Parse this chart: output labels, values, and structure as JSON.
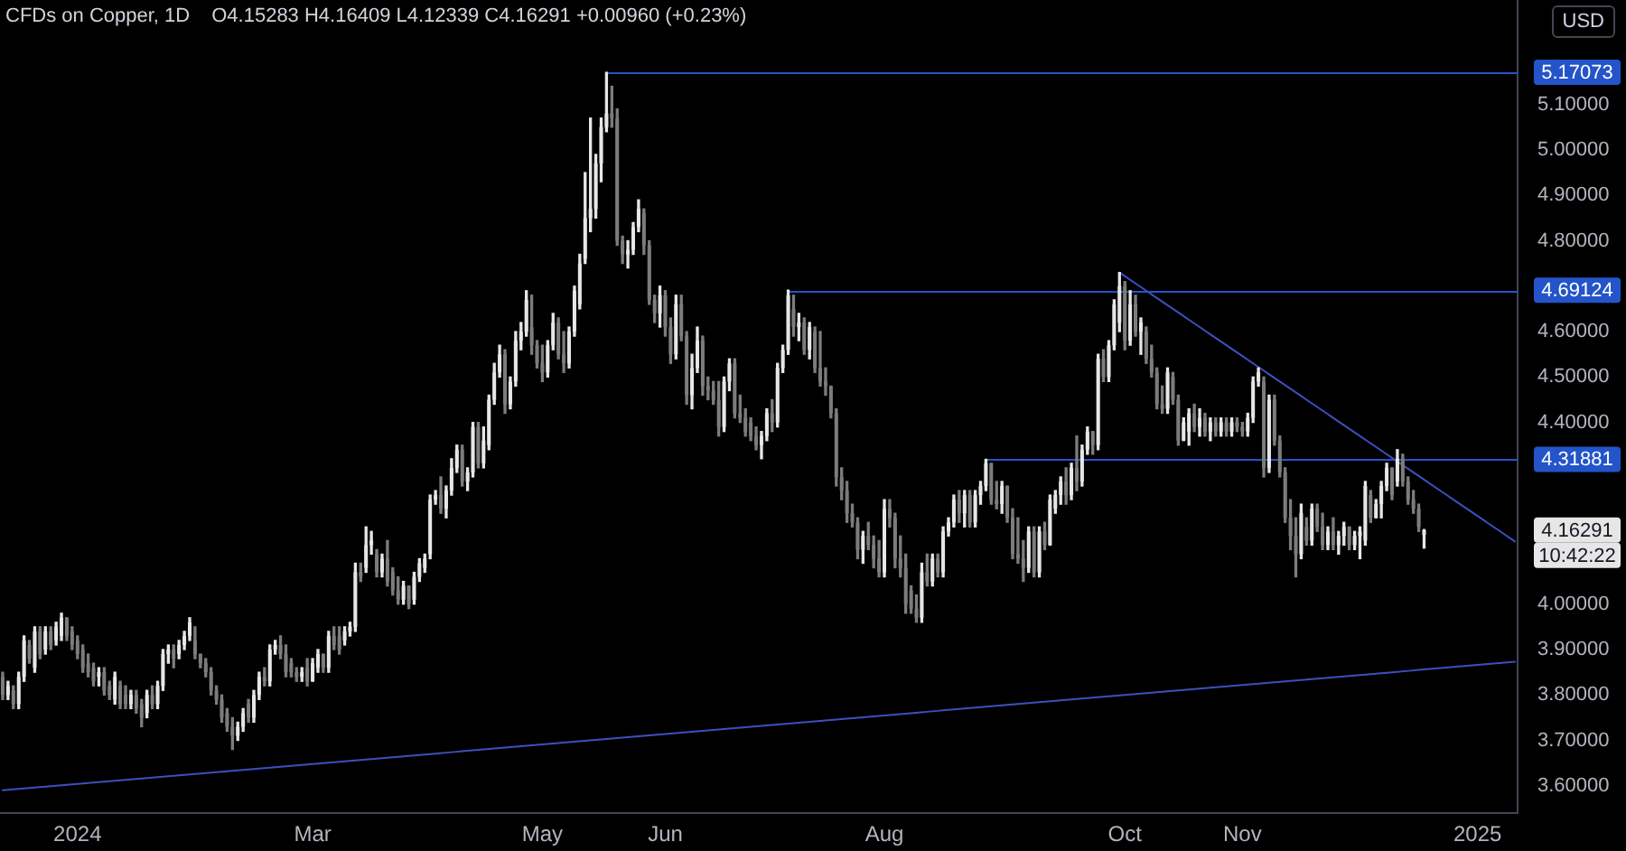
{
  "chart_data": {
    "type": "candlestick",
    "title": "CFDs on Copper, 1D",
    "subtitle": "O4.15283 H4.16409 L4.12339 C4.16291 +0.00960 (+0.23%)",
    "ylabel": "USD",
    "categories": [
      null,
      null,
      null,
      null,
      null,
      null,
      null,
      null,
      null,
      null,
      null,
      null,
      null,
      null,
      "2024",
      null,
      null,
      null,
      null,
      null,
      null,
      null,
      null,
      null,
      null,
      null,
      null,
      null,
      null,
      null,
      null,
      null,
      null,
      null,
      null,
      null,
      null,
      null,
      null,
      null,
      null,
      null,
      null,
      null,
      null,
      null,
      null,
      null,
      null,
      null,
      null,
      null,
      null,
      null,
      null,
      null,
      null,
      null,
      "Mar",
      null,
      null,
      null,
      null,
      null,
      null,
      null,
      null,
      null,
      null,
      null,
      null,
      null,
      null,
      null,
      null,
      null,
      null,
      null,
      null,
      null,
      null,
      null,
      null,
      null,
      null,
      null,
      null,
      null,
      null,
      null,
      null,
      null,
      null,
      null,
      null,
      null,
      null,
      null,
      null,
      null,
      null,
      "May",
      null,
      null,
      null,
      null,
      null,
      null,
      null,
      null,
      null,
      null,
      null,
      null,
      null,
      null,
      null,
      null,
      null,
      null,
      null,
      null,
      null,
      null,
      "Jun",
      null,
      null,
      null,
      null,
      null,
      null,
      null,
      null,
      null,
      null,
      null,
      null,
      null,
      null,
      null,
      null,
      null,
      null,
      null,
      null,
      null,
      null,
      null,
      null,
      null,
      null,
      null,
      null,
      null,
      null,
      null,
      null,
      null,
      null,
      null,
      null,
      null,
      null,
      null,
      null,
      "Aug",
      null,
      null,
      null,
      null,
      null,
      null,
      null,
      null,
      null,
      null,
      null,
      null,
      null,
      null,
      null,
      null,
      null,
      null,
      null,
      null,
      null,
      null,
      null,
      null,
      null,
      null,
      null,
      null,
      null,
      null,
      null,
      null,
      null,
      null,
      null,
      null,
      null,
      null,
      null,
      null,
      null,
      null,
      null,
      null,
      "Oct",
      null,
      null,
      null,
      null,
      null,
      null,
      null,
      null,
      null,
      null,
      null,
      null,
      null,
      null,
      null,
      null,
      null,
      null,
      null,
      null,
      null,
      "Nov",
      null,
      null,
      null,
      null,
      null,
      null,
      null,
      null,
      null,
      null,
      null,
      null,
      null,
      null,
      null,
      null,
      null,
      null,
      null,
      null,
      null,
      null,
      null,
      null,
      null,
      null,
      null,
      null,
      null,
      null,
      null,
      null,
      null,
      null,
      null,
      null,
      null,
      null,
      null,
      null,
      null,
      null,
      null,
      "2025",
      null,
      null,
      null,
      null,
      null,
      null,
      null
    ],
    "ohlc": [
      [
        3.84,
        3.85,
        3.79,
        3.8
      ],
      [
        3.8,
        3.83,
        3.79,
        3.82
      ],
      [
        3.81,
        3.82,
        3.77,
        3.78
      ],
      [
        3.78,
        3.85,
        3.77,
        3.84
      ],
      [
        3.84,
        3.93,
        3.83,
        3.92
      ],
      [
        3.91,
        3.92,
        3.87,
        3.88
      ],
      [
        3.86,
        3.95,
        3.85,
        3.94
      ],
      [
        3.94,
        3.95,
        3.88,
        3.89
      ],
      [
        3.9,
        3.95,
        3.89,
        3.94
      ],
      [
        3.94,
        3.95,
        3.9,
        3.91
      ],
      [
        3.92,
        3.96,
        3.91,
        3.95
      ],
      [
        3.93,
        3.98,
        3.92,
        3.97
      ],
      [
        3.97,
        3.97,
        3.92,
        3.93
      ],
      [
        3.94,
        3.95,
        3.9,
        3.91
      ],
      [
        3.92,
        3.93,
        3.88,
        3.89
      ],
      [
        3.9,
        3.91,
        3.85,
        3.86
      ],
      [
        3.87,
        3.89,
        3.84,
        3.85
      ],
      [
        3.86,
        3.87,
        3.82,
        3.83
      ],
      [
        3.84,
        3.86,
        3.82,
        3.85
      ],
      [
        3.85,
        3.86,
        3.8,
        3.81
      ],
      [
        3.82,
        3.83,
        3.79,
        3.8
      ],
      [
        3.79,
        3.85,
        3.78,
        3.84
      ],
      [
        3.82,
        3.83,
        3.77,
        3.78
      ],
      [
        3.8,
        3.82,
        3.77,
        3.78
      ],
      [
        3.78,
        3.81,
        3.77,
        3.8
      ],
      [
        3.8,
        3.81,
        3.76,
        3.77
      ],
      [
        3.78,
        3.79,
        3.73,
        3.75
      ],
      [
        3.76,
        3.81,
        3.75,
        3.8
      ],
      [
        3.8,
        3.82,
        3.77,
        3.78
      ],
      [
        3.78,
        3.83,
        3.77,
        3.82
      ],
      [
        3.82,
        3.9,
        3.81,
        3.89
      ],
      [
        3.89,
        3.91,
        3.87,
        3.9
      ],
      [
        3.9,
        3.91,
        3.86,
        3.88
      ],
      [
        3.89,
        3.92,
        3.88,
        3.91
      ],
      [
        3.91,
        3.94,
        3.9,
        3.93
      ],
      [
        3.93,
        3.97,
        3.92,
        3.96
      ],
      [
        3.92,
        3.95,
        3.88,
        3.89
      ],
      [
        3.89,
        3.89,
        3.86,
        3.87
      ],
      [
        3.87,
        3.88,
        3.84,
        3.85
      ],
      [
        3.85,
        3.86,
        3.8,
        3.81
      ],
      [
        3.81,
        3.82,
        3.78,
        3.79
      ],
      [
        3.79,
        3.8,
        3.74,
        3.75
      ],
      [
        3.76,
        3.77,
        3.72,
        3.73
      ],
      [
        3.73,
        3.75,
        3.68,
        3.71
      ],
      [
        3.71,
        3.74,
        3.7,
        3.73
      ],
      [
        3.73,
        3.77,
        3.72,
        3.76
      ],
      [
        3.78,
        3.79,
        3.74,
        3.75
      ],
      [
        3.75,
        3.81,
        3.74,
        3.8
      ],
      [
        3.8,
        3.85,
        3.79,
        3.84
      ],
      [
        3.84,
        3.86,
        3.82,
        3.83
      ],
      [
        3.83,
        3.91,
        3.82,
        3.9
      ],
      [
        3.9,
        3.92,
        3.89,
        3.91
      ],
      [
        3.91,
        3.93,
        3.88,
        3.89
      ],
      [
        3.89,
        3.91,
        3.84,
        3.85
      ],
      [
        3.87,
        3.88,
        3.84,
        3.85
      ],
      [
        3.85,
        3.86,
        3.83,
        3.84
      ],
      [
        3.84,
        3.86,
        3.83,
        3.85
      ],
      [
        3.86,
        3.88,
        3.82,
        3.83
      ],
      [
        3.83,
        3.88,
        3.83,
        3.87
      ],
      [
        3.86,
        3.9,
        3.85,
        3.89
      ],
      [
        3.89,
        3.89,
        3.85,
        3.86
      ],
      [
        3.86,
        3.94,
        3.85,
        3.93
      ],
      [
        3.93,
        3.95,
        3.9,
        3.91
      ],
      [
        3.93,
        3.95,
        3.89,
        3.9
      ],
      [
        3.92,
        3.95,
        3.91,
        3.94
      ],
      [
        3.94,
        3.96,
        3.93,
        3.95
      ],
      [
        3.95,
        4.09,
        3.94,
        4.07
      ],
      [
        4.07,
        4.09,
        4.05,
        4.06
      ],
      [
        4.08,
        4.17,
        4.07,
        4.13
      ],
      [
        4.13,
        4.16,
        4.11,
        4.14
      ],
      [
        4.11,
        4.12,
        4.06,
        4.07
      ],
      [
        4.07,
        4.11,
        4.06,
        4.1
      ],
      [
        4.1,
        4.14,
        4.04,
        4.05
      ],
      [
        4.07,
        4.08,
        4.02,
        4.03
      ],
      [
        4.03,
        4.06,
        4.0,
        4.01
      ],
      [
        4.01,
        4.05,
        4.0,
        4.04
      ],
      [
        4.04,
        4.04,
        3.99,
        4.0
      ],
      [
        4.01,
        4.07,
        4.0,
        4.06
      ],
      [
        4.06,
        4.1,
        4.05,
        4.09
      ],
      [
        4.08,
        4.11,
        4.07,
        4.1
      ],
      [
        4.11,
        4.24,
        4.1,
        4.23
      ],
      [
        4.23,
        4.25,
        4.22,
        4.24
      ],
      [
        4.24,
        4.28,
        4.2,
        4.21
      ],
      [
        4.21,
        4.26,
        4.19,
        4.25
      ],
      [
        4.25,
        4.32,
        4.24,
        4.3
      ],
      [
        4.3,
        4.35,
        4.29,
        4.34
      ],
      [
        4.34,
        4.35,
        4.26,
        4.27
      ],
      [
        4.27,
        4.3,
        4.25,
        4.29
      ],
      [
        4.29,
        4.4,
        4.28,
        4.39
      ],
      [
        4.39,
        4.4,
        4.3,
        4.31
      ],
      [
        4.31,
        4.39,
        4.3,
        4.36
      ],
      [
        4.35,
        4.46,
        4.34,
        4.45
      ],
      [
        4.45,
        4.53,
        4.44,
        4.51
      ],
      [
        4.51,
        4.57,
        4.5,
        4.55
      ],
      [
        4.55,
        4.56,
        4.42,
        4.44
      ],
      [
        4.44,
        4.5,
        4.43,
        4.49
      ],
      [
        4.49,
        4.6,
        4.48,
        4.58
      ],
      [
        4.58,
        4.62,
        4.56,
        4.6
      ],
      [
        4.6,
        4.69,
        4.59,
        4.67
      ],
      [
        4.61,
        4.68,
        4.55,
        4.57
      ],
      [
        4.57,
        4.58,
        4.52,
        4.53
      ],
      [
        4.53,
        4.57,
        4.49,
        4.51
      ],
      [
        4.51,
        4.58,
        4.5,
        4.57
      ],
      [
        4.57,
        4.64,
        4.56,
        4.62
      ],
      [
        4.62,
        4.63,
        4.54,
        4.55
      ],
      [
        4.55,
        4.6,
        4.51,
        4.53
      ],
      [
        4.53,
        4.61,
        4.52,
        4.6
      ],
      [
        4.6,
        4.7,
        4.59,
        4.69
      ],
      [
        4.66,
        4.77,
        4.65,
        4.75
      ],
      [
        4.76,
        4.95,
        4.75,
        4.85
      ],
      [
        4.85,
        5.07,
        4.82,
        4.87
      ],
      [
        4.87,
        4.99,
        4.85,
        4.97
      ],
      [
        4.97,
        5.07,
        4.93,
        5.05
      ],
      [
        5.05,
        5.17073,
        5.04,
        5.08
      ],
      [
        5.08,
        5.14,
        5.05,
        5.07
      ],
      [
        5.07,
        5.09,
        4.79,
        4.8
      ],
      [
        4.8,
        4.81,
        4.75,
        4.77
      ],
      [
        4.77,
        4.8,
        4.74,
        4.78
      ],
      [
        4.78,
        4.84,
        4.77,
        4.83
      ],
      [
        4.83,
        4.89,
        4.82,
        4.87
      ],
      [
        4.86,
        4.87,
        4.77,
        4.79
      ],
      [
        4.79,
        4.8,
        4.66,
        4.67
      ],
      [
        4.67,
        4.68,
        4.62,
        4.64
      ],
      [
        4.64,
        4.7,
        4.61,
        4.68
      ],
      [
        4.68,
        4.69,
        4.59,
        4.61
      ],
      [
        4.61,
        4.63,
        4.53,
        4.55
      ],
      [
        4.55,
        4.68,
        4.54,
        4.66
      ],
      [
        4.66,
        4.68,
        4.58,
        4.59
      ],
      [
        4.59,
        4.6,
        4.44,
        4.46
      ],
      [
        4.46,
        4.55,
        4.43,
        4.52
      ],
      [
        4.52,
        4.61,
        4.51,
        4.58
      ],
      [
        4.58,
        4.59,
        4.46,
        4.48
      ],
      [
        4.48,
        4.5,
        4.45,
        4.47
      ],
      [
        4.47,
        4.49,
        4.44,
        4.45
      ],
      [
        4.45,
        4.49,
        4.37,
        4.39
      ],
      [
        4.39,
        4.5,
        4.38,
        4.49
      ],
      [
        4.49,
        4.54,
        4.47,
        4.53
      ],
      [
        4.53,
        4.54,
        4.41,
        4.42
      ],
      [
        4.42,
        4.46,
        4.4,
        4.41
      ],
      [
        4.41,
        4.43,
        4.37,
        4.38
      ],
      [
        4.4,
        4.41,
        4.36,
        4.37
      ],
      [
        4.37,
        4.39,
        4.34,
        4.35
      ],
      [
        4.35,
        4.38,
        4.32,
        4.37
      ],
      [
        4.37,
        4.43,
        4.36,
        4.42
      ],
      [
        4.42,
        4.45,
        4.38,
        4.4
      ],
      [
        4.4,
        4.53,
        4.39,
        4.52
      ],
      [
        4.52,
        4.57,
        4.51,
        4.56
      ],
      [
        4.56,
        4.69124,
        4.55,
        4.68
      ],
      [
        4.65,
        4.68,
        4.59,
        4.61
      ],
      [
        4.61,
        4.64,
        4.58,
        4.62
      ],
      [
        4.62,
        4.63,
        4.55,
        4.56
      ],
      [
        4.56,
        4.62,
        4.54,
        4.61
      ],
      [
        4.6,
        4.61,
        4.51,
        4.52
      ],
      [
        4.52,
        4.6,
        4.48,
        4.49
      ],
      [
        4.49,
        4.52,
        4.46,
        4.48
      ],
      [
        4.48,
        4.48,
        4.41,
        4.42
      ],
      [
        4.42,
        4.43,
        4.26,
        4.28
      ],
      [
        4.28,
        4.3,
        4.23,
        4.25
      ],
      [
        4.25,
        4.27,
        4.18,
        4.2
      ],
      [
        4.2,
        4.22,
        4.17,
        4.18
      ],
      [
        4.18,
        4.19,
        4.1,
        4.12
      ],
      [
        4.12,
        4.16,
        4.09,
        4.15
      ],
      [
        4.15,
        4.18,
        4.12,
        4.13
      ],
      [
        4.13,
        4.15,
        4.08,
        4.1
      ],
      [
        4.1,
        4.14,
        4.06,
        4.07
      ],
      [
        4.07,
        4.23,
        4.06,
        4.21
      ],
      [
        4.21,
        4.23,
        4.17,
        4.19
      ],
      [
        4.19,
        4.2,
        4.08,
        4.1
      ],
      [
        4.1,
        4.15,
        4.06,
        4.08
      ],
      [
        4.08,
        4.11,
        3.98,
        4.0
      ],
      [
        4.03,
        4.04,
        3.98,
        3.99
      ],
      [
        3.99,
        4.02,
        3.96,
        3.97
      ],
      [
        3.97,
        4.09,
        3.96,
        4.07
      ],
      [
        4.07,
        4.11,
        4.04,
        4.05
      ],
      [
        4.05,
        4.11,
        4.04,
        4.1
      ],
      [
        4.1,
        4.11,
        4.06,
        4.07
      ],
      [
        4.07,
        4.17,
        4.06,
        4.16
      ],
      [
        4.16,
        4.19,
        4.15,
        4.18
      ],
      [
        4.18,
        4.24,
        4.17,
        4.23
      ],
      [
        4.23,
        4.25,
        4.18,
        4.2
      ],
      [
        4.2,
        4.25,
        4.17,
        4.24
      ],
      [
        4.24,
        4.25,
        4.17,
        4.18
      ],
      [
        4.18,
        4.25,
        4.17,
        4.24
      ],
      [
        4.24,
        4.27,
        4.22,
        4.26
      ],
      [
        4.26,
        4.31881,
        4.25,
        4.31
      ],
      [
        4.31,
        4.31,
        4.22,
        4.23
      ],
      [
        4.23,
        4.27,
        4.21,
        4.22
      ],
      [
        4.22,
        4.27,
        4.2,
        4.26
      ],
      [
        4.26,
        4.26,
        4.18,
        4.19
      ],
      [
        4.19,
        4.21,
        4.1,
        4.11
      ],
      [
        4.11,
        4.19,
        4.09,
        4.1
      ],
      [
        4.1,
        4.14,
        4.05,
        4.08
      ],
      [
        4.08,
        4.17,
        4.07,
        4.16
      ],
      [
        4.16,
        4.17,
        4.06,
        4.07
      ],
      [
        4.07,
        4.17,
        4.06,
        4.16
      ],
      [
        4.16,
        4.18,
        4.12,
        4.13
      ],
      [
        4.13,
        4.24,
        4.13,
        4.23
      ],
      [
        4.21,
        4.25,
        4.2,
        4.24
      ],
      [
        4.24,
        4.28,
        4.22,
        4.27
      ],
      [
        4.27,
        4.3,
        4.22,
        4.24
      ],
      [
        4.24,
        4.31,
        4.23,
        4.3
      ],
      [
        4.3,
        4.37,
        4.25,
        4.27
      ],
      [
        4.27,
        4.35,
        4.26,
        4.34
      ],
      [
        4.34,
        4.39,
        4.33,
        4.38
      ],
      [
        4.38,
        4.38,
        4.33,
        4.35
      ],
      [
        4.35,
        4.55,
        4.34,
        4.54
      ],
      [
        4.54,
        4.56,
        4.49,
        4.5
      ],
      [
        4.5,
        4.58,
        4.49,
        4.57
      ],
      [
        4.57,
        4.67,
        4.56,
        4.66
      ],
      [
        4.62,
        4.73,
        4.6,
        4.7
      ],
      [
        4.7,
        4.71,
        4.56,
        4.58
      ],
      [
        4.58,
        4.69,
        4.57,
        4.66
      ],
      [
        4.66,
        4.68,
        4.59,
        4.6
      ],
      [
        4.6,
        4.63,
        4.55,
        4.62
      ],
      [
        4.6,
        4.61,
        4.53,
        4.54
      ],
      [
        4.54,
        4.57,
        4.5,
        4.51
      ],
      [
        4.51,
        4.52,
        4.43,
        4.44
      ],
      [
        4.44,
        4.48,
        4.42,
        4.43
      ],
      [
        4.43,
        4.52,
        4.42,
        4.51
      ],
      [
        4.5,
        4.51,
        4.44,
        4.45
      ],
      [
        4.45,
        4.46,
        4.35,
        4.36
      ],
      [
        4.36,
        4.41,
        4.36,
        4.4
      ],
      [
        4.38,
        4.43,
        4.35,
        4.42
      ],
      [
        4.42,
        4.44,
        4.38,
        4.39
      ],
      [
        4.39,
        4.43,
        4.37,
        4.41
      ],
      [
        4.41,
        4.42,
        4.37,
        4.38
      ],
      [
        4.38,
        4.41,
        4.36,
        4.4
      ],
      [
        4.4,
        4.41,
        4.37,
        4.38
      ],
      [
        4.38,
        4.41,
        4.37,
        4.4
      ],
      [
        4.4,
        4.41,
        4.37,
        4.38
      ],
      [
        4.38,
        4.41,
        4.37,
        4.4
      ],
      [
        4.4,
        4.41,
        4.38,
        4.39
      ],
      [
        4.39,
        4.4,
        4.37,
        4.38
      ],
      [
        4.38,
        4.42,
        4.37,
        4.41
      ],
      [
        4.41,
        4.5,
        4.4,
        4.49
      ],
      [
        4.49,
        4.52,
        4.48,
        4.51
      ],
      [
        4.49,
        4.5,
        4.28,
        4.3
      ],
      [
        4.3,
        4.46,
        4.29,
        4.45
      ],
      [
        4.45,
        4.46,
        4.35,
        4.36
      ],
      [
        4.36,
        4.37,
        4.28,
        4.29
      ],
      [
        4.29,
        4.3,
        4.18,
        4.19
      ],
      [
        4.19,
        4.23,
        4.12,
        4.15
      ],
      [
        4.15,
        4.19,
        4.06,
        4.11
      ],
      [
        4.11,
        4.22,
        4.1,
        4.2
      ],
      [
        4.17,
        4.19,
        4.13,
        4.14
      ],
      [
        4.14,
        4.22,
        4.13,
        4.21
      ],
      [
        4.21,
        4.22,
        4.16,
        4.17
      ],
      [
        4.17,
        4.2,
        4.12,
        4.13
      ],
      [
        4.13,
        4.17,
        4.12,
        4.16
      ],
      [
        4.16,
        4.19,
        4.12,
        4.13
      ],
      [
        4.13,
        4.16,
        4.11,
        4.15
      ],
      [
        4.15,
        4.18,
        4.13,
        4.17
      ],
      [
        4.17,
        4.17,
        4.12,
        4.13
      ],
      [
        4.13,
        4.16,
        4.12,
        4.15
      ],
      [
        4.15,
        4.17,
        4.1,
        4.16
      ],
      [
        4.14,
        4.27,
        4.13,
        4.26
      ],
      [
        4.24,
        4.25,
        4.18,
        4.19
      ],
      [
        4.19,
        4.23,
        4.19,
        4.22
      ],
      [
        4.22,
        4.27,
        4.19,
        4.26
      ],
      [
        4.26,
        4.31,
        4.25,
        4.3
      ],
      [
        4.3,
        4.3,
        4.23,
        4.24
      ],
      [
        4.27,
        4.34,
        4.26,
        4.32
      ],
      [
        4.32,
        4.33,
        4.26,
        4.27
      ],
      [
        4.27,
        4.28,
        4.22,
        4.23
      ],
      [
        4.23,
        4.25,
        4.2,
        4.21
      ],
      [
        4.21,
        4.22,
        4.16,
        4.17
      ],
      [
        4.15283,
        4.16409,
        4.12339,
        4.16291
      ],
      null,
      null,
      null,
      null,
      null,
      null,
      null,
      null,
      null,
      null,
      null,
      null,
      null,
      null,
      null,
      null,
      null
    ],
    "colors": [
      "#7c7c7c",
      "#e6e6e6",
      "#7c7c7c",
      "#e6e6e6",
      "#e6e6e6",
      "#7c7c7c",
      "#e6e6e6",
      "#7c7c7c",
      "#e6e6e6",
      "#7c7c7c",
      "#e6e6e6",
      "#e6e6e6",
      "#7c7c7c",
      "#7c7c7c",
      "#7c7c7c",
      "#7c7c7c",
      "#7c7c7c",
      "#7c7c7c",
      "#e6e6e6",
      "#7c7c7c",
      "#7c7c7c",
      "#e6e6e6",
      "#7c7c7c",
      "#7c7c7c",
      "#e6e6e6",
      "#7c7c7c",
      "#7c7c7c",
      "#e6e6e6",
      "#7c7c7c",
      "#e6e6e6",
      "#e6e6e6",
      "#e6e6e6",
      "#7c7c7c",
      "#e6e6e6",
      "#e6e6e6",
      "#e6e6e6",
      "#7c7c7c",
      "#7c7c7c",
      "#7c7c7c",
      "#7c7c7c",
      "#7c7c7c",
      "#7c7c7c",
      "#7c7c7c",
      "#7c7c7c",
      "#e6e6e6",
      "#e6e6e6",
      "#7c7c7c",
      "#e6e6e6",
      "#e6e6e6",
      "#7c7c7c",
      "#e6e6e6",
      "#e6e6e6",
      "#7c7c7c",
      "#7c7c7c",
      "#7c7c7c",
      "#7c7c7c",
      "#e6e6e6",
      "#7c7c7c",
      "#e6e6e6",
      "#e6e6e6",
      "#7c7c7c",
      "#e6e6e6",
      "#7c7c7c",
      "#7c7c7c",
      "#e6e6e6",
      "#e6e6e6",
      "#e6e6e6",
      "#7c7c7c",
      "#e6e6e6",
      "#e6e6e6",
      "#7c7c7c",
      "#e6e6e6",
      "#7c7c7c",
      "#7c7c7c",
      "#7c7c7c",
      "#e6e6e6",
      "#7c7c7c",
      "#e6e6e6",
      "#e6e6e6",
      "#e6e6e6",
      "#e6e6e6",
      "#e6e6e6",
      "#7c7c7c",
      "#e6e6e6",
      "#e6e6e6",
      "#e6e6e6",
      "#7c7c7c",
      "#e6e6e6",
      "#e6e6e6",
      "#7c7c7c",
      "#e6e6e6",
      "#e6e6e6",
      "#e6e6e6",
      "#e6e6e6",
      "#7c7c7c",
      "#e6e6e6",
      "#e6e6e6",
      "#e6e6e6",
      "#e6e6e6",
      "#7c7c7c",
      "#7c7c7c",
      "#7c7c7c",
      "#e6e6e6",
      "#e6e6e6",
      "#7c7c7c",
      "#7c7c7c",
      "#e6e6e6",
      "#e6e6e6",
      "#e6e6e6",
      "#e6e6e6",
      "#e6e6e6",
      "#e6e6e6",
      "#e6e6e6",
      "#e6e6e6",
      "#7c7c7c",
      "#7c7c7c",
      "#7c7c7c",
      "#e6e6e6",
      "#e6e6e6",
      "#e6e6e6",
      "#7c7c7c",
      "#7c7c7c",
      "#7c7c7c",
      "#e6e6e6",
      "#7c7c7c",
      "#7c7c7c",
      "#e6e6e6",
      "#7c7c7c",
      "#7c7c7c",
      "#e6e6e6",
      "#e6e6e6",
      "#7c7c7c",
      "#7c7c7c",
      "#7c7c7c",
      "#7c7c7c",
      "#e6e6e6",
      "#e6e6e6",
      "#7c7c7c",
      "#7c7c7c",
      "#7c7c7c",
      "#7c7c7c",
      "#7c7c7c",
      "#e6e6e6",
      "#e6e6e6",
      "#7c7c7c",
      "#e6e6e6",
      "#e6e6e6",
      "#e6e6e6",
      "#7c7c7c",
      "#e6e6e6",
      "#7c7c7c",
      "#e6e6e6",
      "#7c7c7c",
      "#7c7c7c",
      "#7c7c7c",
      "#7c7c7c",
      "#7c7c7c",
      "#7c7c7c",
      "#7c7c7c",
      "#7c7c7c",
      "#7c7c7c",
      "#e6e6e6",
      "#7c7c7c",
      "#7c7c7c",
      "#7c7c7c",
      "#e6e6e6",
      "#7c7c7c",
      "#7c7c7c",
      "#7c7c7c",
      "#7c7c7c",
      "#7c7c7c",
      "#7c7c7c",
      "#e6e6e6",
      "#7c7c7c",
      "#e6e6e6",
      "#7c7c7c",
      "#e6e6e6",
      "#e6e6e6",
      "#e6e6e6",
      "#7c7c7c",
      "#e6e6e6",
      "#7c7c7c",
      "#e6e6e6",
      "#e6e6e6",
      "#e6e6e6",
      "#7c7c7c",
      "#7c7c7c",
      "#e6e6e6",
      "#7c7c7c",
      "#7c7c7c",
      "#7c7c7c",
      "#7c7c7c",
      "#e6e6e6",
      "#7c7c7c",
      "#e6e6e6",
      "#7c7c7c",
      "#e6e6e6",
      "#e6e6e6",
      "#e6e6e6",
      "#7c7c7c",
      "#e6e6e6",
      "#7c7c7c",
      "#e6e6e6",
      "#e6e6e6",
      "#7c7c7c",
      "#e6e6e6",
      "#7c7c7c",
      "#e6e6e6",
      "#e6e6e6",
      "#e6e6e6",
      "#7c7c7c",
      "#e6e6e6",
      "#7c7c7c",
      "#e6e6e6",
      "#7c7c7c",
      "#7c7c7c",
      "#7c7c7c",
      "#7c7c7c",
      "#e6e6e6",
      "#7c7c7c",
      "#7c7c7c",
      "#e6e6e6",
      "#e6e6e6",
      "#7c7c7c",
      "#e6e6e6",
      "#7c7c7c",
      "#e6e6e6",
      "#7c7c7c",
      "#e6e6e6",
      "#7c7c7c",
      "#e6e6e6",
      "#7c7c7c",
      "#7c7c7c",
      "#e6e6e6",
      "#e6e6e6",
      "#e6e6e6",
      "#7c7c7c",
      "#e6e6e6",
      "#7c7c7c",
      "#7c7c7c",
      "#7c7c7c",
      "#7c7c7c",
      "#7c7c7c",
      "#e6e6e6",
      "#7c7c7c",
      "#e6e6e6",
      "#7c7c7c",
      "#7c7c7c",
      "#e6e6e6",
      "#7c7c7c",
      "#e6e6e6",
      "#e6e6e6",
      "#7c7c7c",
      "#e6e6e6",
      "#e6e6e6",
      "#e6e6e6",
      "#7c7c7c",
      "#e6e6e6",
      "#e6e6e6",
      "#e6e6e6",
      "#7c7c7c",
      "#e6e6e6",
      "#7c7c7c",
      "#7c7c7c",
      "#7c7c7c",
      "#7c7c7c",
      "#e6e6e6",
      null,
      null,
      null,
      null,
      null,
      null,
      null,
      null,
      null,
      null,
      null,
      null,
      null,
      null,
      null,
      null,
      null
    ],
    "series": [
      {
        "type": "line",
        "color": "#3d4fbf",
        "values": [
          null,
          null,
          null,
          null,
          null,
          null,
          null,
          null,
          null,
          null,
          null,
          null,
          null,
          null,
          null,
          null,
          null,
          null,
          null,
          null,
          null,
          null,
          null,
          null,
          null,
          null,
          null,
          null,
          null,
          null,
          null,
          null,
          null,
          null,
          null,
          null,
          null,
          null,
          null,
          null,
          null,
          null,
          null,
          null,
          null,
          null,
          null,
          null,
          null,
          null,
          null,
          null,
          null,
          null,
          null,
          null,
          null,
          null,
          null,
          null,
          null,
          null,
          null,
          null,
          null,
          null,
          null,
          null,
          null,
          null,
          null,
          null,
          null,
          null,
          null,
          null,
          null,
          null,
          null,
          null,
          null,
          null,
          null,
          null,
          null,
          null,
          null,
          null,
          null,
          null,
          null,
          null,
          null,
          null,
          null,
          null,
          null,
          null,
          null,
          null,
          null,
          null,
          null,
          null,
          null,
          null,
          null,
          null,
          null,
          null,
          null,
          null,
          null,
          null,
          null,
          null,
          null,
          null,
          null,
          null,
          null,
          null,
          null,
          null,
          null,
          null,
          null,
          null,
          null,
          null,
          null,
          null,
          null,
          null,
          null,
          null,
          null,
          null,
          null,
          null,
          null,
          null,
          null,
          null,
          null,
          null,
          null,
          null,
          null,
          null,
          null,
          null,
          null,
          null,
          null,
          null,
          null,
          null,
          null,
          null,
          null,
          null,
          null,
          null,
          null,
          null,
          null,
          null,
          null,
          null,
          null,
          null,
          null,
          null,
          null,
          null,
          null,
          null,
          null,
          null,
          null,
          null,
          null,
          null,
          null,
          null,
          null,
          null,
          null,
          null,
          null,
          null,
          null,
          null,
          null,
          null,
          null,
          null,
          null,
          null,
          null,
          null,
          null,
          null,
          null,
          null,
          null,
          null,
          null,
          4.73,
          4.722,
          4.714,
          4.706,
          4.698,
          4.69,
          4.682,
          4.674,
          4.666,
          4.658,
          4.65,
          4.642,
          4.634,
          4.626,
          4.618,
          4.61,
          4.602,
          4.594,
          4.586,
          4.578,
          4.57,
          4.562,
          4.554,
          4.546,
          4.538,
          4.53,
          4.522,
          4.514,
          4.506,
          4.498,
          4.49,
          4.482,
          4.474,
          4.466,
          4.458,
          4.45,
          4.442,
          4.434,
          4.426,
          4.418,
          4.41,
          4.402,
          4.394,
          4.386,
          4.378,
          4.37,
          4.362,
          4.354,
          4.346,
          4.338,
          4.33,
          4.322,
          4.314,
          4.306,
          4.298,
          4.29,
          4.282,
          4.274,
          4.266,
          4.258,
          4.25,
          4.242,
          4.234,
          4.226,
          4.218,
          4.21,
          4.202,
          4.194,
          4.186,
          4.178,
          4.17,
          4.162,
          4.154,
          4.146,
          4.138
        ]
      },
      {
        "type": "line",
        "color": "#3d4fbf",
        "values": [
          3.59,
          3.591,
          3.592,
          3.593,
          3.594,
          3.595,
          3.596,
          3.597,
          3.598,
          3.599,
          3.6,
          3.601,
          3.602,
          3.603,
          3.604,
          3.605,
          3.606,
          3.607,
          3.608,
          3.609,
          3.61,
          3.611,
          3.612,
          3.613,
          3.614,
          3.615,
          3.616,
          3.617,
          3.618,
          3.619,
          3.62,
          3.621,
          3.622,
          3.623,
          3.624,
          3.625,
          3.626,
          3.627,
          3.628,
          3.629,
          3.63,
          3.631,
          3.632,
          3.633,
          3.634,
          3.635,
          3.636,
          3.637,
          3.638,
          3.639,
          3.64,
          3.641,
          3.642,
          3.643,
          3.644,
          3.645,
          3.646,
          3.647,
          3.648,
          3.649,
          3.65,
          3.651,
          3.652,
          3.653,
          3.654,
          3.655,
          3.656,
          3.657,
          3.658,
          3.659,
          3.66,
          3.661,
          3.662,
          3.663,
          3.664,
          3.665,
          3.666,
          3.667,
          3.668,
          3.669,
          3.67,
          3.671,
          3.672,
          3.673,
          3.674,
          3.675,
          3.676,
          3.677,
          3.678,
          3.679,
          3.68,
          3.681,
          3.682,
          3.683,
          3.684,
          3.685,
          3.686,
          3.687,
          3.688,
          3.689,
          3.69,
          3.691,
          3.692,
          3.693,
          3.694,
          3.695,
          3.696,
          3.697,
          3.698,
          3.699,
          3.7,
          3.701,
          3.702,
          3.703,
          3.704,
          3.705,
          3.706,
          3.707,
          3.708,
          3.709,
          3.71,
          3.711,
          3.712,
          3.713,
          3.714,
          3.715,
          3.716,
          3.717,
          3.718,
          3.719,
          3.72,
          3.721,
          3.722,
          3.723,
          3.724,
          3.725,
          3.726,
          3.727,
          3.728,
          3.729,
          3.73,
          3.731,
          3.732,
          3.733,
          3.734,
          3.735,
          3.736,
          3.737,
          3.738,
          3.739,
          3.74,
          3.741,
          3.742,
          3.743,
          3.744,
          3.745,
          3.746,
          3.747,
          3.748,
          3.749,
          3.75,
          3.751,
          3.752,
          3.753,
          3.754,
          3.755,
          3.756,
          3.757,
          3.758,
          3.759,
          3.76,
          3.761,
          3.762,
          3.763,
          3.764,
          3.765,
          3.766,
          3.767,
          3.768,
          3.769,
          3.77,
          3.771,
          3.772,
          3.773,
          3.774,
          3.775,
          3.776,
          3.777,
          3.778,
          3.779,
          3.78,
          3.781,
          3.782,
          3.783,
          3.784,
          3.785,
          3.786,
          3.787,
          3.788,
          3.789,
          3.79,
          3.791,
          3.792,
          3.793,
          3.794,
          3.795,
          3.796,
          3.797,
          3.798,
          3.799,
          3.8,
          3.801,
          3.802,
          3.803,
          3.804,
          3.805,
          3.806,
          3.807,
          3.808,
          3.809,
          3.81,
          3.811,
          3.812,
          3.813,
          3.814,
          3.815,
          3.816,
          3.817,
          3.818,
          3.819,
          3.82,
          3.821,
          3.822,
          3.823,
          3.824,
          3.825,
          3.826,
          3.827,
          3.828,
          3.829,
          3.83,
          3.831,
          3.832,
          3.833,
          3.834,
          3.835,
          3.836,
          3.837,
          3.838,
          3.839,
          3.84,
          3.841,
          3.842,
          3.843,
          3.844,
          3.845,
          3.846,
          3.847,
          3.848,
          3.849,
          3.85,
          3.851,
          3.852,
          3.853,
          3.854,
          3.855,
          3.856,
          3.857,
          3.858,
          3.859,
          3.86,
          3.861,
          3.862,
          3.863,
          3.864,
          3.865,
          3.866,
          3.867,
          3.868,
          3.869,
          3.87,
          3.871,
          3.872,
          3.873
        ]
      }
    ],
    "ref_lines": [
      {
        "axis": "y",
        "value": 5.17073,
        "label": "5.17073",
        "color": "#2354c9"
      },
      {
        "axis": "y",
        "value": 4.69124,
        "label": "4.69124",
        "color": "#2354c9"
      },
      {
        "axis": "y",
        "value": 4.31881,
        "label": "4.31881",
        "color": "#2354c9"
      }
    ],
    "annotations": [
      "4.16291",
      "10:42:22"
    ],
    "ylim": [
      3.54,
      5.33
    ],
    "yticks": [
      {
        "value": 3.6,
        "label": "3.60000"
      },
      {
        "value": 3.7,
        "label": "3.70000"
      },
      {
        "value": 3.8,
        "label": "3.80000"
      },
      {
        "value": 3.9,
        "label": "3.90000"
      },
      {
        "value": 4.0,
        "label": "4.00000"
      },
      {
        "value": 4.4,
        "label": "4.40000"
      },
      {
        "value": 4.5,
        "label": "4.50000"
      },
      {
        "value": 4.6,
        "label": "4.60000"
      },
      {
        "value": 4.8,
        "label": "4.80000"
      },
      {
        "value": 4.9,
        "label": "4.90000"
      },
      {
        "value": 5.0,
        "label": "5.00000"
      },
      {
        "value": 5.1,
        "label": "5.10000"
      }
    ]
  }
}
